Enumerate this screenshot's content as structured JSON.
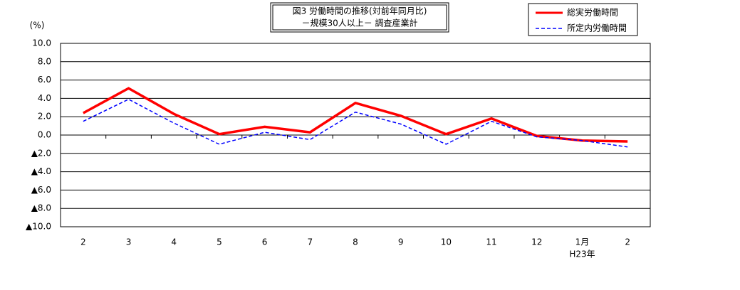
{
  "chart_data": {
    "type": "line",
    "title": "図3 労働時間の推移(対前年同月比)",
    "subtitle": "－規模30人以上－ 調査産業計",
    "y_label": "(%)",
    "categories": [
      "2",
      "3",
      "4",
      "5",
      "6",
      "7",
      "8",
      "9",
      "10",
      "11",
      "12",
      "1月",
      "2"
    ],
    "x_sublabels": [
      null,
      null,
      null,
      null,
      null,
      null,
      null,
      null,
      null,
      null,
      null,
      "H23年",
      null
    ],
    "series": [
      {
        "name": "総実労働時間",
        "color": "#ff0000",
        "dash": false,
        "values": [
          2.4,
          5.1,
          2.3,
          0.1,
          0.9,
          0.3,
          3.5,
          2.1,
          0.1,
          1.8,
          -0.1,
          -0.6,
          -0.7
        ]
      },
      {
        "name": "所定内労働時間",
        "color": "#0000ff",
        "dash": true,
        "values": [
          1.5,
          3.9,
          1.3,
          -1.0,
          0.3,
          -0.5,
          2.5,
          1.2,
          -1.0,
          1.5,
          -0.2,
          -0.6,
          -1.3
        ]
      }
    ],
    "ylim": [
      -10,
      10
    ],
    "yticks": [
      {
        "value": 10,
        "label": "10.0"
      },
      {
        "value": 8,
        "label": "8.0"
      },
      {
        "value": 6,
        "label": "6.0"
      },
      {
        "value": 4,
        "label": "4.0"
      },
      {
        "value": 2,
        "label": "2.0"
      },
      {
        "value": 0,
        "label": "0.0"
      },
      {
        "value": -2,
        "label": "▲2.0"
      },
      {
        "value": -4,
        "label": "▲4.0"
      },
      {
        "value": -6,
        "label": "▲6.0"
      },
      {
        "value": -8,
        "label": "▲8.0"
      },
      {
        "value": -10,
        "label": "▲10.0"
      }
    ],
    "grid": true
  }
}
